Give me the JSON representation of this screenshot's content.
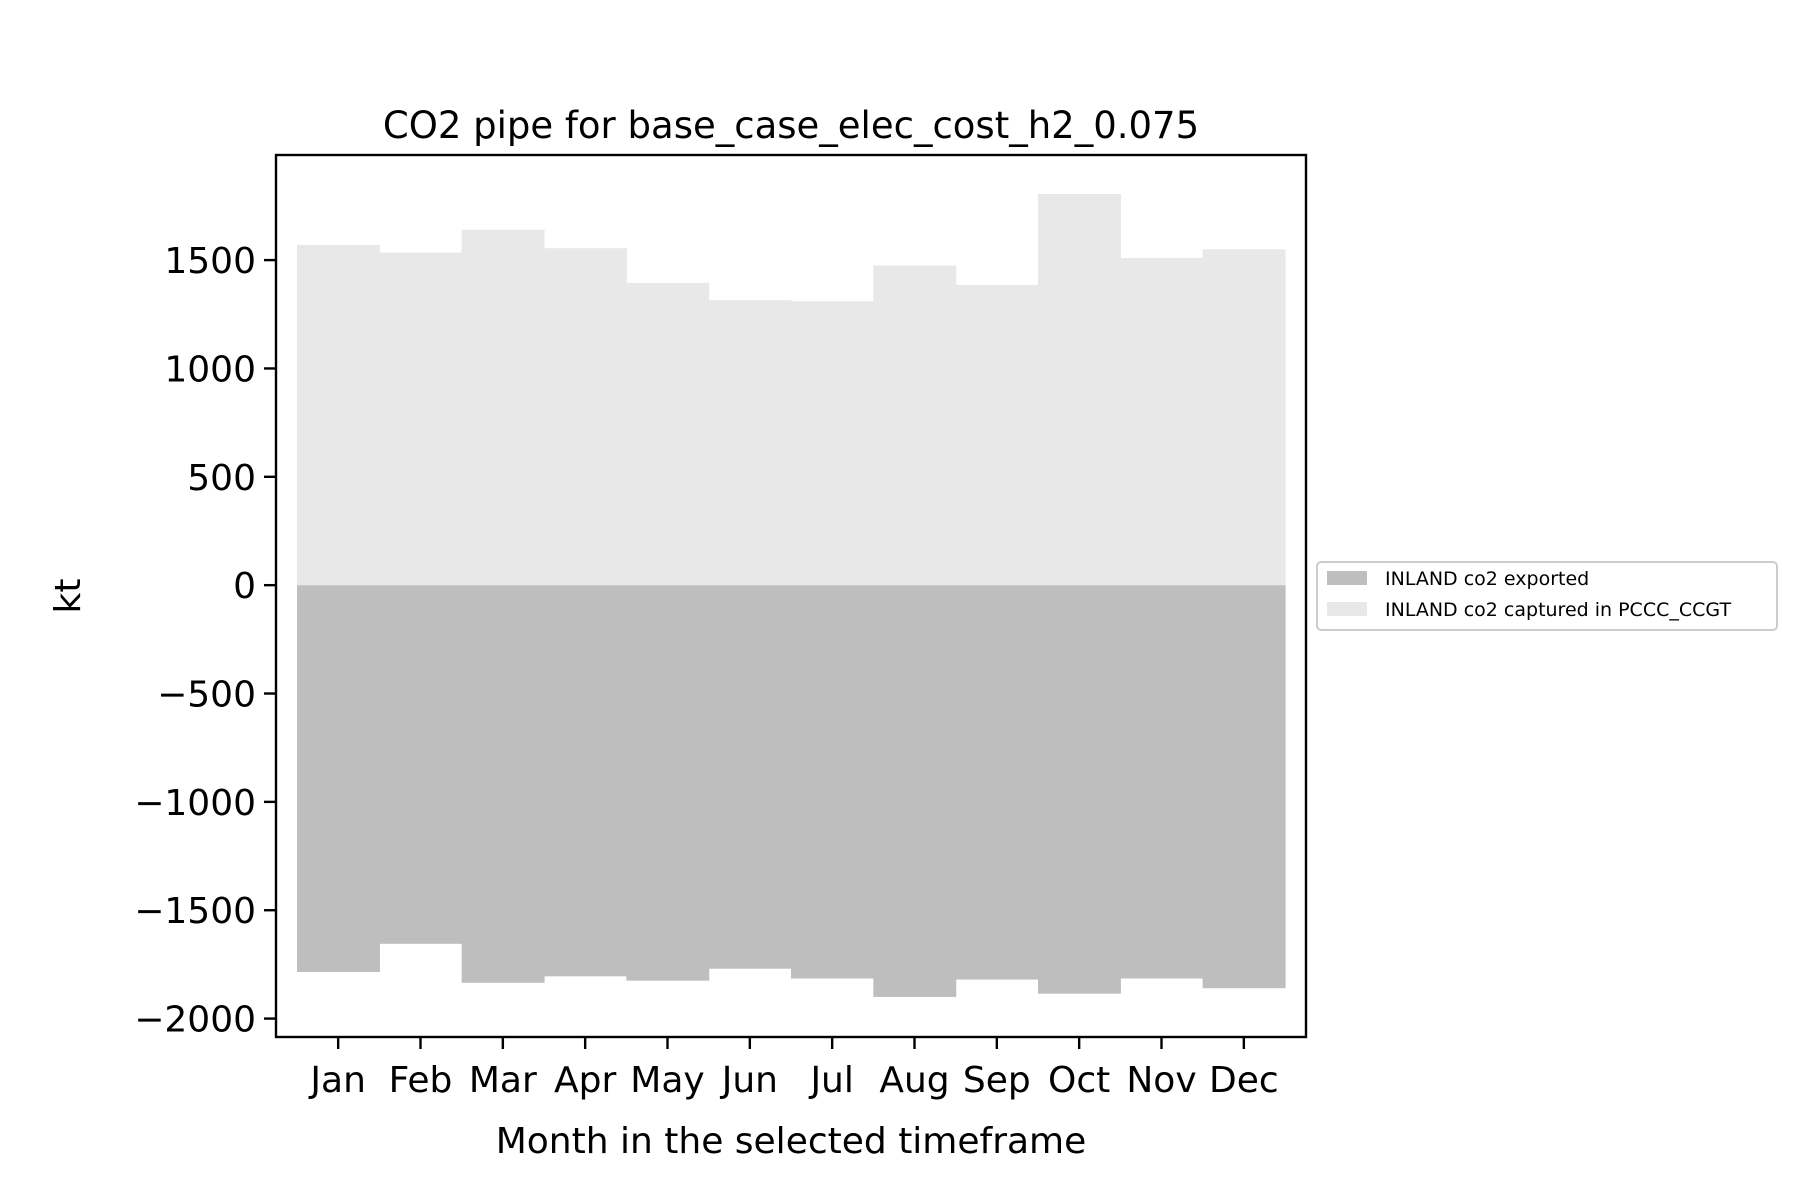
{
  "chart_data": {
    "type": "area",
    "title": "CO2 pipe for base_case_elec_cost_h2_0.075",
    "xlabel": "Month in the selected timeframe",
    "ylabel": "kt",
    "categories": [
      "Jan",
      "Feb",
      "Mar",
      "Apr",
      "May",
      "Jun",
      "Jul",
      "Aug",
      "Sep",
      "Oct",
      "Nov",
      "Dec"
    ],
    "ylim": [
      -2085,
      1985
    ],
    "yticks": [
      1500,
      1000,
      500,
      0,
      -500,
      -1000,
      -1500,
      -2000
    ],
    "ytick_labels": [
      "1500",
      "1000",
      "500",
      "0",
      "−500",
      "−1000",
      "−1500",
      "−2000"
    ],
    "step": true,
    "grid": false,
    "legend_position": "right, outside plot",
    "series": [
      {
        "name": "INLAND co2 exported",
        "color": "#bebebe",
        "values": [
          -1785,
          -1655,
          -1835,
          -1805,
          -1825,
          -1770,
          -1815,
          -1900,
          -1820,
          -1885,
          -1815,
          -1860
        ]
      },
      {
        "name": "INLAND co2 captured in PCCC_CCGT",
        "color": "#e8e8e8",
        "values": [
          1570,
          1535,
          1640,
          1555,
          1395,
          1315,
          1310,
          1475,
          1385,
          1805,
          1510,
          1550
        ]
      }
    ]
  }
}
